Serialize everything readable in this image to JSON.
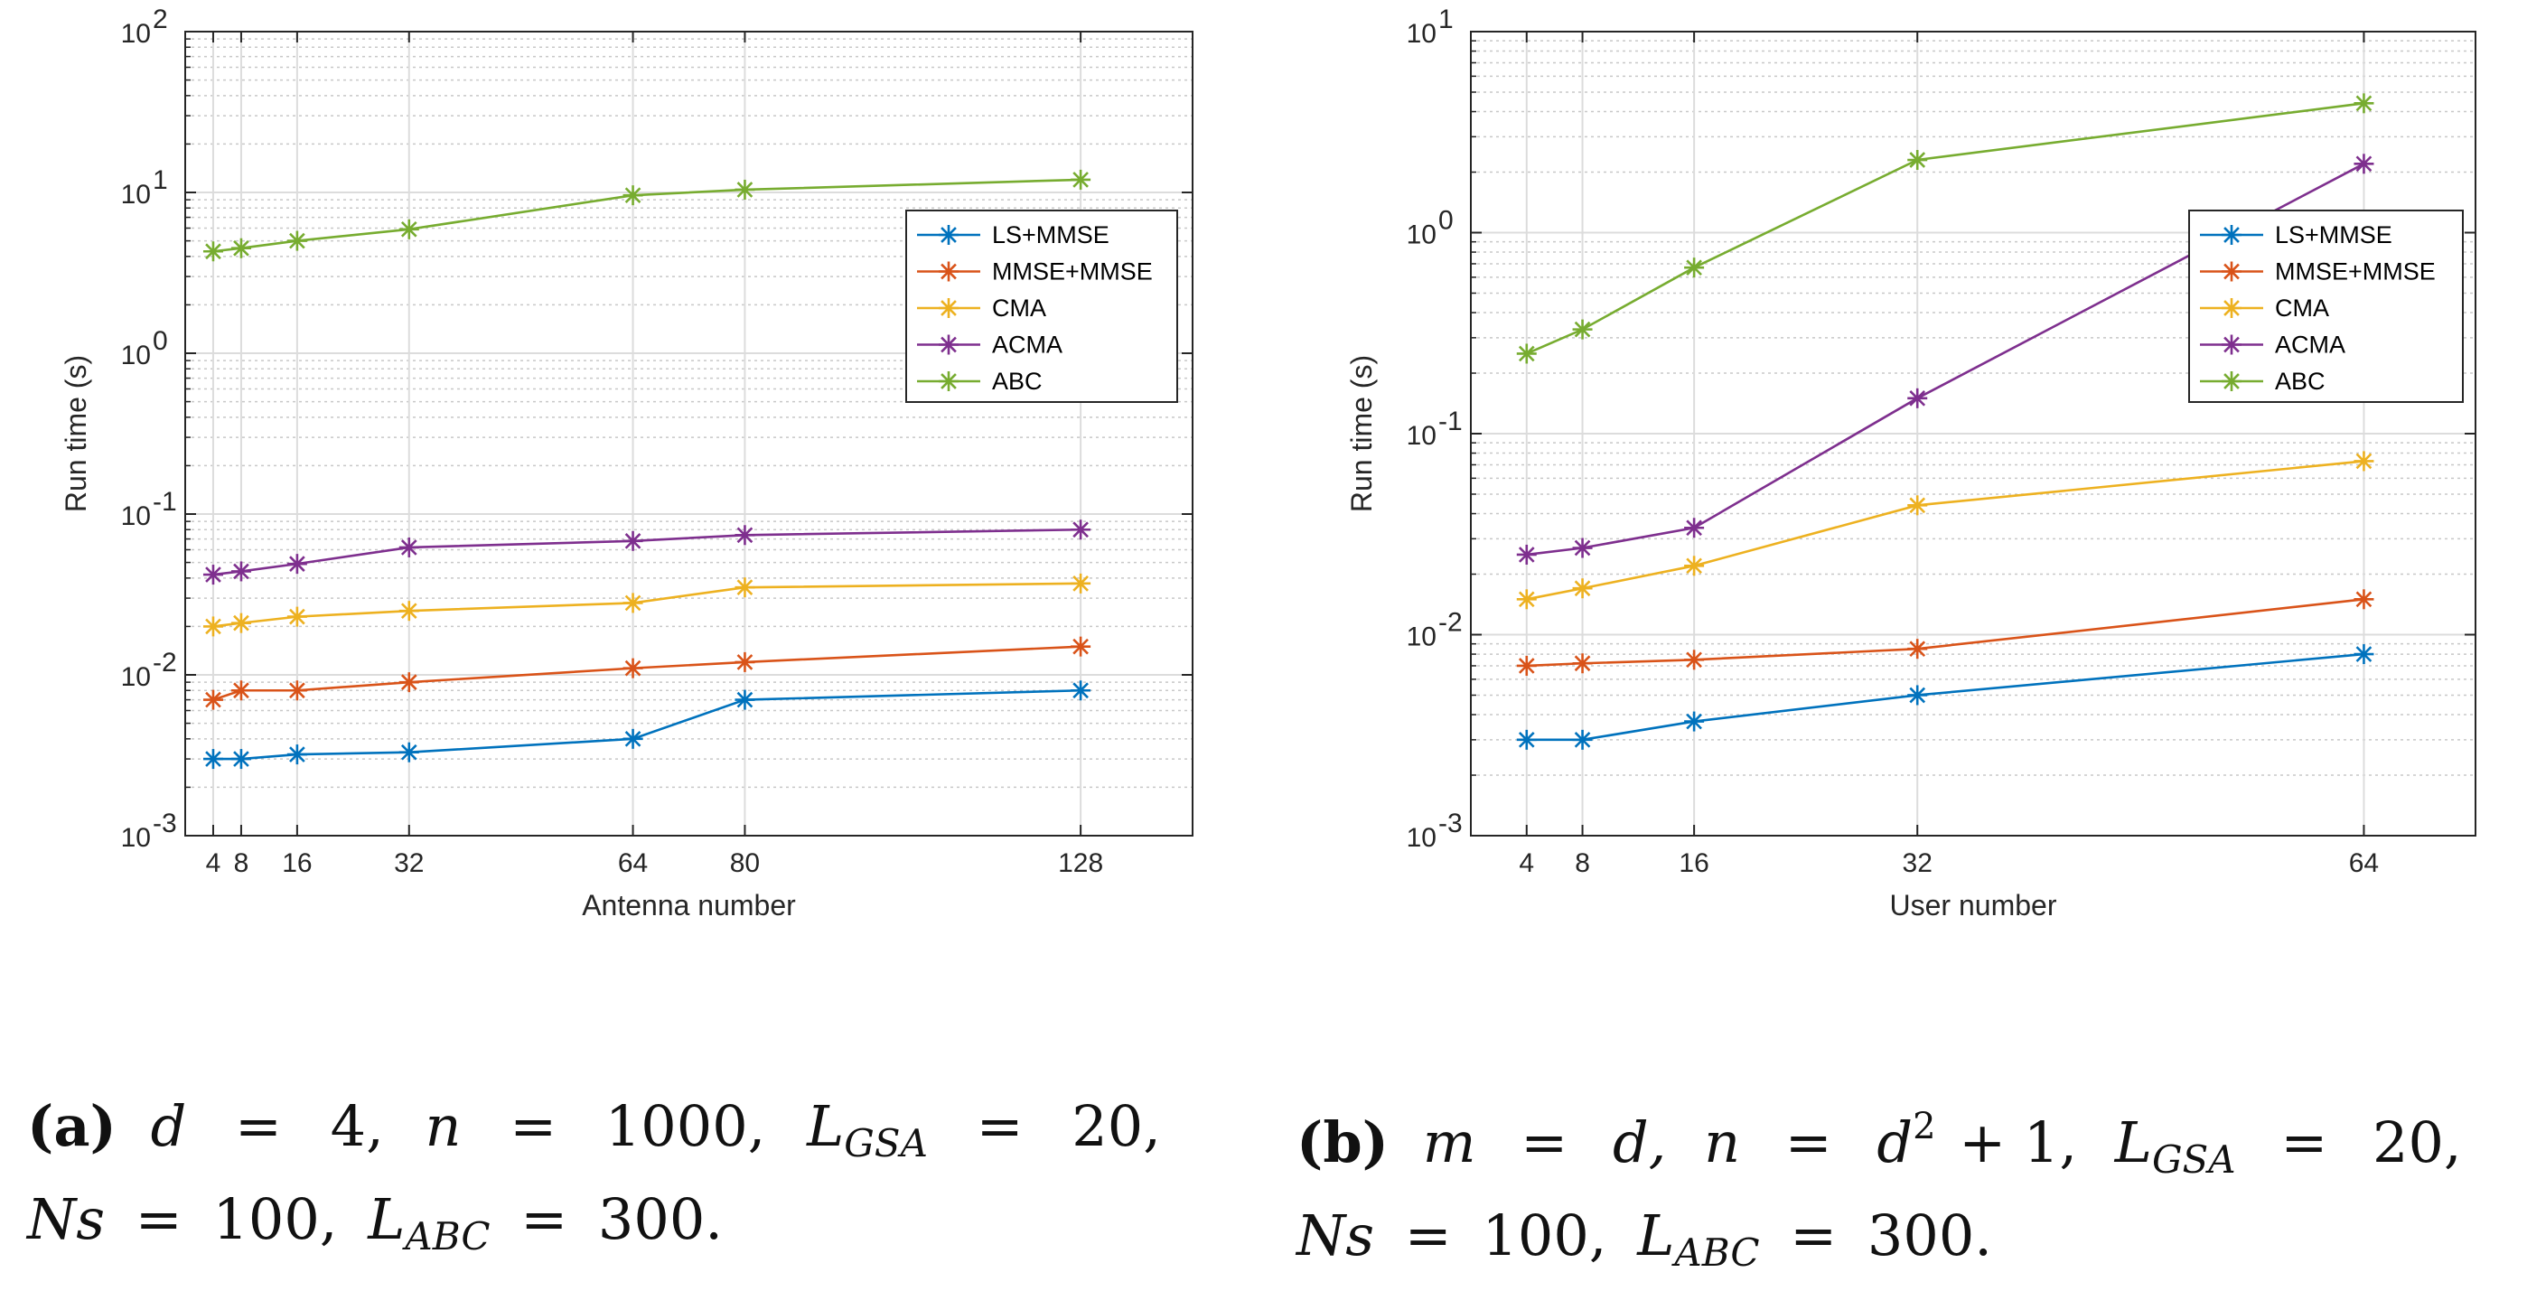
{
  "chart_data": [
    {
      "type": "line",
      "id": "a",
      "xlabel": "Antenna number",
      "ylabel": "Run time (s)",
      "yscale": "log",
      "ylim": [
        0.001,
        100
      ],
      "xlim": [
        0,
        144
      ],
      "grid": true,
      "legend_position": "top-right",
      "x": [
        4,
        8,
        16,
        32,
        64,
        80,
        128
      ],
      "x_ticks": [
        "4",
        "8",
        "16",
        "32",
        "64",
        "80",
        "128"
      ],
      "y_ticks": [
        {
          "base": "10",
          "exp": "-3"
        },
        {
          "base": "10",
          "exp": "-2"
        },
        {
          "base": "10",
          "exp": "-1"
        },
        {
          "base": "10",
          "exp": "0"
        },
        {
          "base": "10",
          "exp": "1"
        },
        {
          "base": "10",
          "exp": "2"
        }
      ],
      "series": [
        {
          "name": "LS+MMSE",
          "color": "#0072BD",
          "values": [
            0.003,
            0.003,
            0.0032,
            0.0033,
            0.004,
            0.007,
            0.008
          ]
        },
        {
          "name": "MMSE+MMSE",
          "color": "#D95319",
          "values": [
            0.007,
            0.008,
            0.008,
            0.009,
            0.011,
            0.012,
            0.015
          ]
        },
        {
          "name": "CMA",
          "color": "#EDB120",
          "values": [
            0.02,
            0.021,
            0.023,
            0.025,
            0.028,
            0.035,
            0.037
          ]
        },
        {
          "name": "ACMA",
          "color": "#7E2F8E",
          "values": [
            0.042,
            0.044,
            0.049,
            0.062,
            0.068,
            0.074,
            0.08
          ]
        },
        {
          "name": "ABC",
          "color": "#77AC30",
          "values": [
            4.3,
            4.5,
            5.0,
            5.9,
            9.6,
            10.4,
            12.0
          ]
        }
      ]
    },
    {
      "type": "line",
      "id": "b",
      "xlabel": "User number",
      "ylabel": "Run time (s)",
      "yscale": "log",
      "ylim": [
        0.001,
        10
      ],
      "xlim": [
        0,
        72
      ],
      "grid": true,
      "legend_position": "top-right",
      "x": [
        4,
        8,
        16,
        32,
        64
      ],
      "x_ticks": [
        "4",
        "8",
        "16",
        "32",
        "64"
      ],
      "y_ticks": [
        {
          "base": "10",
          "exp": "-3"
        },
        {
          "base": "10",
          "exp": "-2"
        },
        {
          "base": "10",
          "exp": "-1"
        },
        {
          "base": "10",
          "exp": "0"
        },
        {
          "base": "10",
          "exp": "1"
        }
      ],
      "series": [
        {
          "name": "LS+MMSE",
          "color": "#0072BD",
          "values": [
            0.003,
            0.003,
            0.0037,
            0.005,
            0.008
          ]
        },
        {
          "name": "MMSE+MMSE",
          "color": "#D95319",
          "values": [
            0.007,
            0.0072,
            0.0075,
            0.0085,
            0.015
          ]
        },
        {
          "name": "CMA",
          "color": "#EDB120",
          "values": [
            0.015,
            0.017,
            0.022,
            0.044,
            0.073
          ]
        },
        {
          "name": "ACMA",
          "color": "#7E2F8E",
          "values": [
            0.025,
            0.027,
            0.034,
            0.15,
            2.2
          ]
        },
        {
          "name": "ABC",
          "color": "#77AC30",
          "values": [
            0.25,
            0.33,
            0.67,
            2.3,
            4.4
          ]
        }
      ]
    }
  ],
  "captions": {
    "a": {
      "label": "(a)",
      "line1": {
        "v1": "d",
        "eq": "=",
        "n1": "4,",
        "v2": "n",
        "n2": "1000,",
        "v3": "L",
        "s3": "GSA",
        "n3": "20,"
      },
      "line2": {
        "v1": "Ns",
        "eq": "=",
        "n1": "100,",
        "v2": "L",
        "s2": "ABC",
        "n2": "300."
      }
    },
    "b": {
      "label": "(b)",
      "line1": {
        "v1": "m",
        "eq": "=",
        "n1": "d,",
        "v2": "n",
        "n2a": "d",
        "exp": "2",
        "n2b": "+ 1,",
        "v3": "L",
        "s3": "GSA",
        "n3": "20,"
      },
      "line2": {
        "v1": "Ns",
        "eq": "=",
        "n1": "100,",
        "v2": "L",
        "s2": "ABC",
        "n2": "300."
      }
    }
  }
}
